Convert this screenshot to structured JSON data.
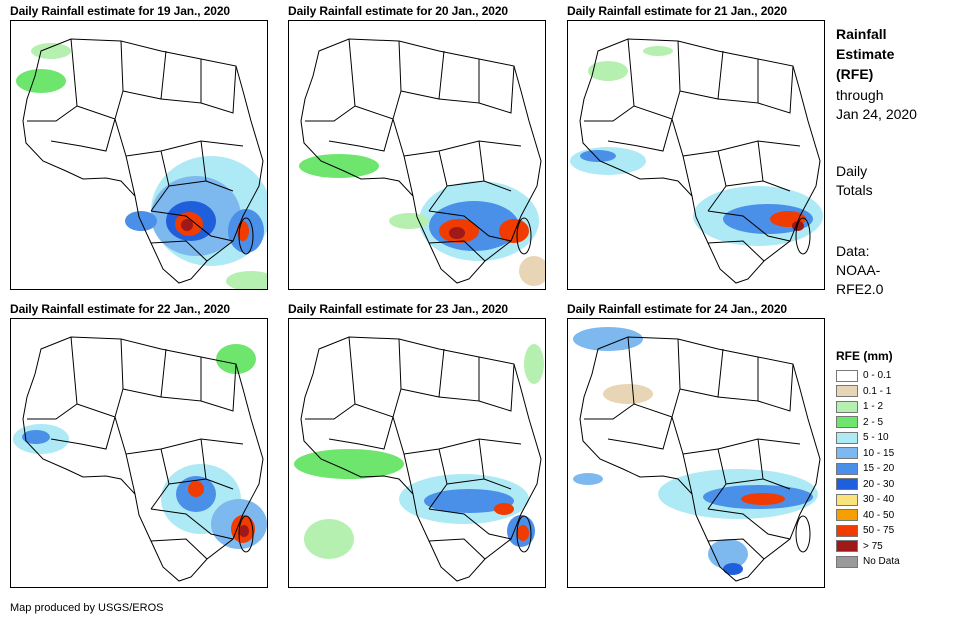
{
  "panels": [
    {
      "title": "Daily Rainfall estimate for 19 Jan., 2020"
    },
    {
      "title": "Daily Rainfall estimate for 20 Jan., 2020"
    },
    {
      "title": "Daily Rainfall estimate for 21 Jan., 2020"
    },
    {
      "title": "Daily Rainfall estimate for 22 Jan., 2020"
    },
    {
      "title": "Daily Rainfall estimate for 23 Jan., 2020"
    },
    {
      "title": "Daily Rainfall estimate for 24 Jan., 2020"
    }
  ],
  "side": {
    "title_line1": "Rainfall",
    "title_line2": "Estimate",
    "title_line3": "(RFE)",
    "through": "through",
    "date": "Jan 24, 2020",
    "daily1": "Daily",
    "daily2": "Totals",
    "data1": "Data:",
    "data2": "NOAA-",
    "data3": "RFE2.0"
  },
  "legend": {
    "title": "RFE (mm)",
    "items": [
      {
        "label": "0 - 0.1",
        "color": "#ffffff"
      },
      {
        "label": "0.1 - 1",
        "color": "#e8d5b5"
      },
      {
        "label": "1 - 2",
        "color": "#b5f0b0"
      },
      {
        "label": "2 - 5",
        "color": "#6ee66e"
      },
      {
        "label": "5 - 10",
        "color": "#aeeaf5"
      },
      {
        "label": "10 - 15",
        "color": "#7db8ef"
      },
      {
        "label": "15 - 20",
        "color": "#4a8fe8"
      },
      {
        "label": "20 - 30",
        "color": "#1f5fdc"
      },
      {
        "label": "30 - 40",
        "color": "#fce27a"
      },
      {
        "label": "40 - 50",
        "color": "#f5a000"
      },
      {
        "label": "50 - 75",
        "color": "#f03c00"
      },
      {
        "label": "> 75",
        "color": "#a01818"
      },
      {
        "label": "No Data",
        "color": "#9a9a9a"
      }
    ]
  },
  "credit": "Map produced by USGS/EROS"
}
